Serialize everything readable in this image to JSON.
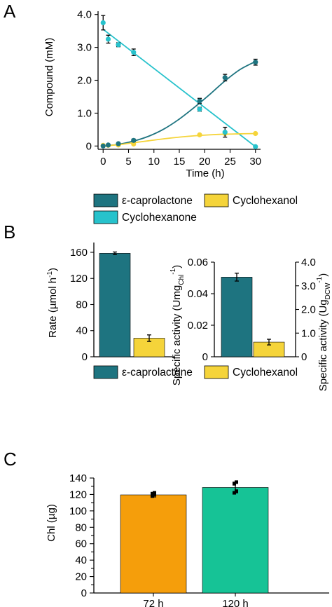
{
  "panels": {
    "a": "A",
    "b": "B",
    "c": "C"
  },
  "colors": {
    "caprolactone": "#1e7480",
    "cyclohexanone": "#27c2cc",
    "cyclohexanol": "#f5d43a",
    "h72": "#f59e0b",
    "h120": "#16c396"
  },
  "legend_a": {
    "caprolactone": "ε-caprolactone",
    "cyclohexanol": "Cyclohexanol",
    "cyclohexanone": "Cyclohexanone"
  },
  "legend_b": {
    "caprolactone": "ε-caprolactone",
    "cyclohexanol": "Cyclohexanol"
  },
  "chart_data": [
    {
      "type": "line",
      "panel": "A",
      "xlabel": "Time (h)",
      "ylabel": "Compound (mM)",
      "xlim": [
        -1,
        31
      ],
      "ylim": [
        -0.1,
        4.1
      ],
      "xticks": [
        0,
        5,
        10,
        15,
        20,
        25,
        30
      ],
      "yticks": [
        0,
        1.0,
        2.0,
        3.0,
        4.0
      ],
      "ytick_labels": [
        "0",
        "1.0",
        "2.0",
        "3.0",
        "4.0"
      ],
      "series": [
        {
          "name": "ε-caprolactone",
          "color": "#1e7480",
          "x": [
            0,
            1,
            3,
            6,
            19,
            24,
            30
          ],
          "y": [
            0.0,
            0.03,
            0.07,
            0.17,
            1.37,
            2.08,
            2.55
          ],
          "err": [
            0.02,
            0.02,
            0.03,
            0.04,
            0.08,
            0.1,
            0.09
          ],
          "fit_x": [
            0,
            3,
            6,
            9,
            12,
            15,
            18,
            21,
            24,
            27,
            30
          ],
          "fit_y": [
            0.0,
            0.05,
            0.15,
            0.3,
            0.52,
            0.82,
            1.18,
            1.57,
            1.98,
            2.33,
            2.57
          ]
        },
        {
          "name": "Cyclohexanone",
          "color": "#27c2cc",
          "x": [
            0,
            1,
            3,
            6,
            19,
            24,
            30
          ],
          "y": [
            3.75,
            3.25,
            3.08,
            2.85,
            1.12,
            0.42,
            -0.02
          ],
          "err": [
            0.22,
            0.12,
            0.06,
            0.1,
            0.06,
            0.15,
            0.02
          ],
          "fit_x": [
            0,
            30
          ],
          "fit_y": [
            3.55,
            -0.02
          ]
        },
        {
          "name": "Cyclohexanol",
          "color": "#f5d43a",
          "x": [
            0,
            1,
            3,
            6,
            19,
            24,
            30
          ],
          "y": [
            0.02,
            0.02,
            0.03,
            0.06,
            0.34,
            0.38,
            0.38
          ],
          "err": [
            0.01,
            0.01,
            0.01,
            0.01,
            0.03,
            0.02,
            0.03
          ],
          "fit_x": [
            0,
            3,
            6,
            9,
            12,
            15,
            18,
            21,
            24,
            27,
            30
          ],
          "fit_y": [
            0.0,
            0.04,
            0.1,
            0.16,
            0.22,
            0.27,
            0.31,
            0.34,
            0.36,
            0.37,
            0.38
          ]
        }
      ]
    },
    {
      "type": "bar",
      "panel": "B-left",
      "ylabel": "Rate (µmol h",
      "ylabel_sup": "-1",
      "ylabel_close": ")",
      "ylim": [
        0,
        175
      ],
      "yticks": [
        0,
        40,
        80,
        120,
        160
      ],
      "categories": [
        "ε-caprolactone",
        "Cyclohexanol"
      ],
      "values": [
        158.5,
        28.5
      ],
      "errors": [
        2.0,
        5.0
      ]
    },
    {
      "type": "bar",
      "panel": "B-right",
      "ylabel_left": {
        "pre": "Specific activity (Umg",
        "sub": "Chl",
        "sup": "-1",
        "post": ")"
      },
      "ylabel_right": {
        "pre": "Specific activity (Ug",
        "sub": "DCW",
        "sup": "-1",
        "post": ")"
      },
      "ylim": [
        0,
        0.06
      ],
      "yticks": [
        0,
        0.02,
        0.04,
        0.06
      ],
      "ytick_labels": [
        "0",
        "0.02",
        "0.04",
        "0.06"
      ],
      "ylim_right": [
        0,
        4.0
      ],
      "yticks_right": [
        0.0,
        1.0,
        2.0,
        3.0,
        4.0
      ],
      "ytick_labels_right": [
        "0",
        "1.0",
        "2.0",
        "3.0",
        "4.0"
      ],
      "categories": [
        "ε-caprolactone",
        "Cyclohexanol"
      ],
      "values": [
        0.0505,
        0.0093
      ],
      "errors": [
        0.0025,
        0.0018
      ]
    },
    {
      "type": "bar",
      "panel": "C",
      "ylabel": "Chl (µg)",
      "ylim": [
        0,
        140
      ],
      "yticks": [
        0,
        10,
        20,
        30,
        40,
        50,
        60,
        70,
        80,
        90,
        100,
        110,
        120,
        130,
        140
      ],
      "yticks_labeled": [
        0,
        20,
        40,
        60,
        80,
        100,
        120,
        140
      ],
      "categories": [
        "72 h",
        "120 h"
      ],
      "values": [
        119.5,
        128.5
      ],
      "errors": [
        2.5,
        6.5
      ],
      "points": [
        [
          118,
          120,
          121,
          122
        ],
        [
          122,
          124,
          133,
          135
        ]
      ]
    }
  ]
}
